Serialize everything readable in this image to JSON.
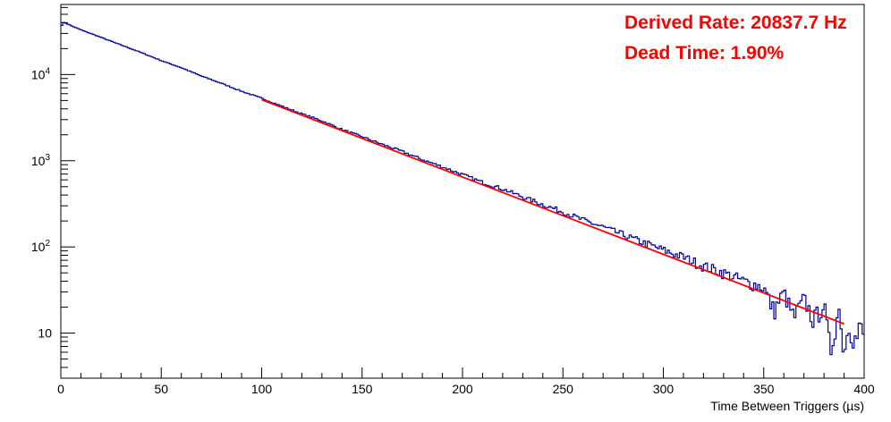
{
  "chart_data": {
    "type": "line",
    "title": "",
    "xlabel": "Time Between Triggers (µs)",
    "ylabel": "",
    "xlim": [
      0,
      400
    ],
    "ylim": [
      3,
      65000
    ],
    "yscale": "log",
    "grid": false,
    "x_ticks": [
      0,
      50,
      100,
      150,
      200,
      250,
      300,
      350,
      400
    ],
    "x_tick_labels": [
      "0",
      "50",
      "100",
      "150",
      "200",
      "250",
      "300",
      "350",
      "400"
    ],
    "y_ticks": [
      10,
      100,
      1000,
      10000
    ],
    "y_tick_labels": [
      {
        "base": "10",
        "exp": ""
      },
      {
        "base": "10",
        "exp": "2"
      },
      {
        "base": "10",
        "exp": "3"
      },
      {
        "base": "10",
        "exp": "4"
      }
    ],
    "series": [
      {
        "kind": "histogram",
        "color": "#000099",
        "x": [
          0,
          1,
          2,
          3,
          5,
          10,
          20,
          30,
          40,
          50,
          60,
          70,
          80,
          90,
          100,
          110,
          120,
          130,
          140,
          150,
          160,
          170,
          180,
          190,
          200,
          210,
          220,
          230,
          240,
          250,
          260,
          270,
          280,
          290,
          300,
          310,
          320,
          330,
          340,
          350,
          355,
          360,
          365,
          370,
          375,
          380,
          383,
          386,
          388,
          390,
          392,
          394,
          396,
          398,
          400
        ],
        "values": [
          35000,
          40000,
          40000,
          39000,
          37000,
          33000,
          27000,
          22000,
          18000,
          14500,
          12000,
          9600,
          7900,
          6400,
          5300,
          4300,
          3500,
          2900,
          2300,
          1900,
          1550,
          1280,
          1030,
          850,
          690,
          560,
          470,
          380,
          310,
          255,
          205,
          170,
          138,
          112,
          92,
          76,
          60,
          50,
          40,
          34,
          18,
          30,
          15,
          25,
          14,
          22,
          6,
          14,
          20,
          5,
          15,
          10,
          8,
          12,
          9
        ]
      },
      {
        "kind": "fit",
        "color": "#ff0000",
        "x": [
          100,
          390
        ],
        "values": [
          5100,
          12.8
        ]
      }
    ],
    "annotations": [
      "Derived Rate: 20837.7 Hz",
      "Dead Time: 1.90%"
    ]
  }
}
